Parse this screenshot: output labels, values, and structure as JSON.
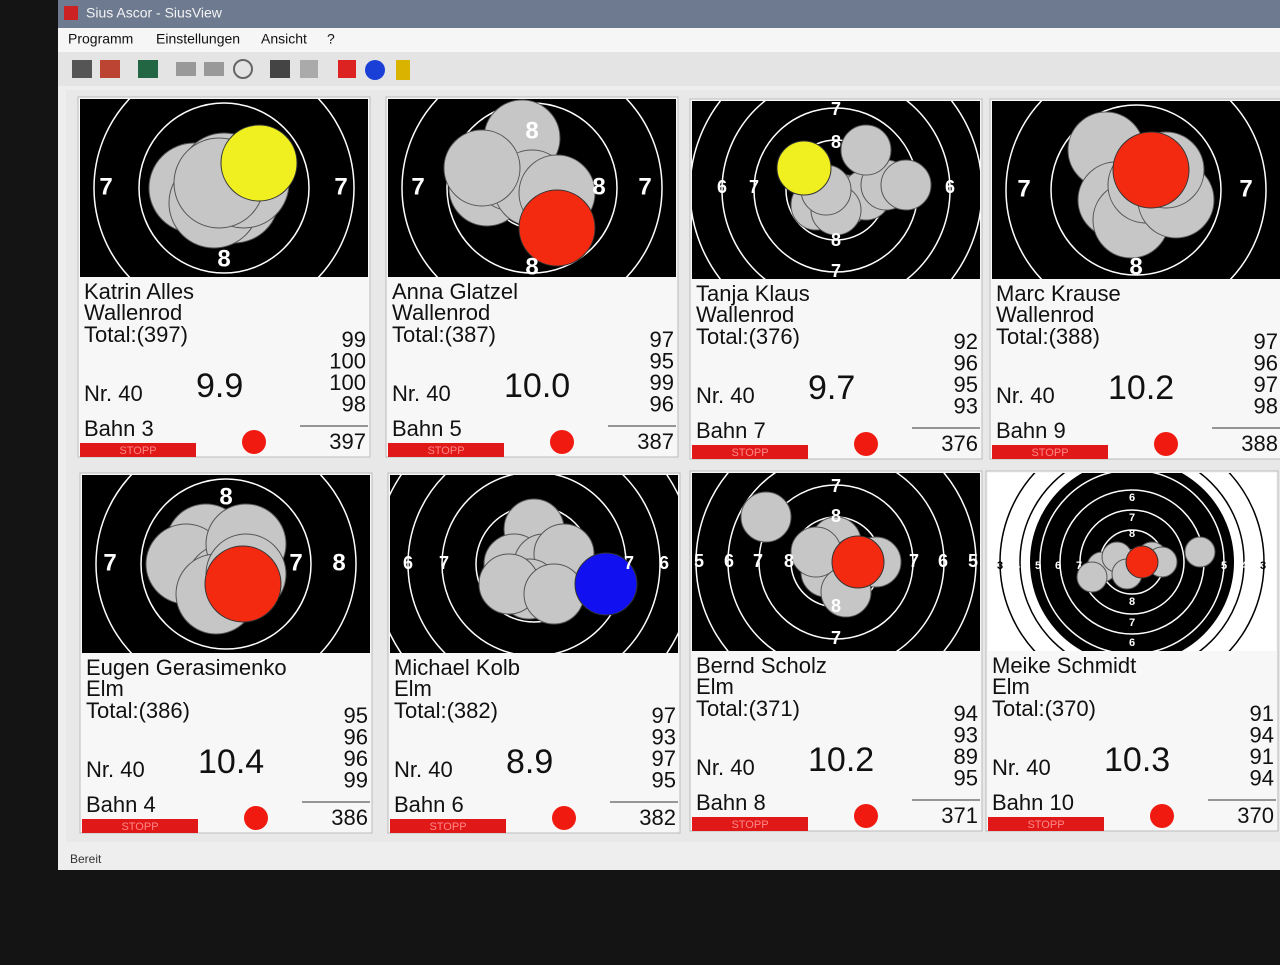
{
  "window": {
    "title": "Sius Ascor - SiusView",
    "menu": [
      "Programm",
      "Einstellungen",
      "Ansicht",
      "?"
    ],
    "status": "Bereit"
  },
  "panels": [
    {
      "name": "Katrin Alles",
      "club": "Wallenrod",
      "total": "Total:(397)",
      "series": [
        99,
        100,
        100,
        98
      ],
      "shot_number": "Nr. 40",
      "shot": "9.9",
      "lane": "Bahn 3",
      "state": "STOPP",
      "sum": 397,
      "ring_labels": [
        "7",
        "7",
        "8"
      ]
    },
    {
      "name": "Anna Glatzel",
      "club": "Wallenrod",
      "total": "Total:(387)",
      "series": [
        97,
        95,
        99,
        96
      ],
      "shot_number": "Nr. 40",
      "shot": "10.0",
      "lane": "Bahn 5",
      "state": "STOPP",
      "sum": 387,
      "ring_labels": [
        "8",
        "7",
        "8",
        "7",
        "8"
      ]
    },
    {
      "name": "Tanja Klaus",
      "club": "Wallenrod",
      "total": "Total:(376)",
      "series": [
        92,
        96,
        95,
        93
      ],
      "shot_number": "Nr. 40",
      "shot": "9.7",
      "lane": "Bahn 7",
      "state": "STOPP",
      "sum": 376,
      "ring_labels": [
        "7",
        "8",
        "6",
        "7",
        "6",
        "8",
        "7"
      ]
    },
    {
      "name": "Marc Krause",
      "club": "Wallenrod",
      "total": "Total:(388)",
      "series": [
        97,
        96,
        97,
        98
      ],
      "shot_number": "Nr. 40",
      "shot": "10.2",
      "lane": "Bahn 9",
      "state": "STOPP",
      "sum": 388,
      "ring_labels": [
        "7",
        "7",
        "8"
      ]
    },
    {
      "name": "Eugen Gerasimenko",
      "club": "Elm",
      "total": "Total:(386)",
      "series": [
        95,
        96,
        96,
        99
      ],
      "shot_number": "Nr. 40",
      "shot": "10.4",
      "lane": "Bahn 4",
      "state": "STOPP",
      "sum": 386,
      "ring_labels": [
        "8",
        "7",
        "7",
        "8"
      ]
    },
    {
      "name": "Michael Kolb",
      "club": "Elm",
      "total": "Total:(382)",
      "series": [
        97,
        93,
        97,
        95
      ],
      "shot_number": "Nr. 40",
      "shot": "8.9",
      "lane": "Bahn 6",
      "state": "STOPP",
      "sum": 382,
      "ring_labels": [
        "6",
        "7",
        "7",
        "6"
      ]
    },
    {
      "name": "Bernd Scholz",
      "club": "Elm",
      "total": "Total:(371)",
      "series": [
        94,
        93,
        89,
        95
      ],
      "shot_number": "Nr. 40",
      "shot": "10.2",
      "lane": "Bahn 8",
      "state": "STOPP",
      "sum": 371,
      "ring_labels": [
        "7",
        "8",
        "5",
        "6",
        "7",
        "8",
        "7",
        "6",
        "5",
        "8",
        "7"
      ]
    },
    {
      "name": "Meike Schmidt",
      "club": "Elm",
      "total": "Total:(370)",
      "series": [
        91,
        94,
        91,
        94
      ],
      "shot_number": "Nr. 40",
      "shot": "10.3",
      "lane": "Bahn 10",
      "state": "STOPP",
      "sum": 370,
      "ring_labels": [
        "6",
        "7",
        "8",
        "3",
        "4",
        "5",
        "6",
        "7",
        "5",
        "4",
        "3",
        "8",
        "7",
        "6"
      ]
    }
  ]
}
